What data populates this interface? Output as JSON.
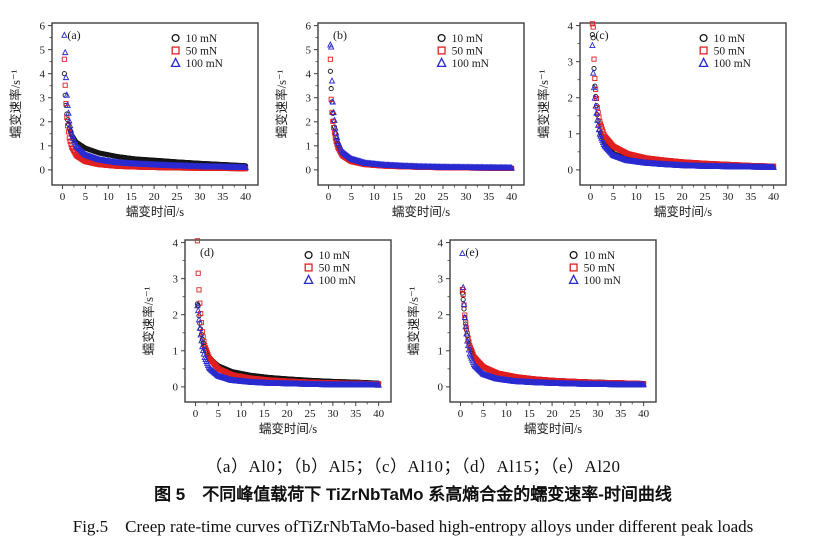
{
  "figure": {
    "caption_sub": "（a）Al0；（b）Al5；（c）Al10；（d）Al15；（e）Al20",
    "caption_zh": "图 5　不同峰值载荷下 TiZrNbTaMo 系高熵合金的蠕变速率-时间曲线",
    "caption_en": "Fig.5　Creep rate-time curves ofTiZrNbTaMo-based high-entropy alloys under different peak loads"
  },
  "colors": {
    "load10": "#141414",
    "load50": "#e01f1f",
    "load100": "#2a2ad0",
    "frame": "#3f3f3f",
    "text": "#1c1c1c"
  },
  "chart_data": [
    {
      "type": "scatter",
      "panel": "(a)",
      "alloy": "Al0",
      "xlabel": "蠕变时间/s",
      "ylabel": "蠕变速率/s⁻¹",
      "xlim": [
        0,
        40
      ],
      "ylim": [
        0,
        6
      ],
      "xticks": [
        0,
        5,
        10,
        15,
        20,
        25,
        30,
        35,
        40
      ],
      "yticks": [
        0,
        1,
        2,
        3,
        4,
        5,
        6
      ],
      "legend_position": "top-right",
      "grid": false,
      "t": [
        0.4,
        0.6,
        0.8,
        1,
        1.5,
        2,
        3,
        5,
        8,
        12,
        16,
        20,
        25,
        30,
        35,
        40
      ],
      "series": [
        {
          "name": "10 mN",
          "marker": "circle",
          "color_key": "load10",
          "y": [
            4.0,
            3.0,
            2.6,
            2.2,
            1.7,
            1.45,
            1.15,
            0.9,
            0.7,
            0.55,
            0.45,
            0.4,
            0.33,
            0.27,
            0.22,
            0.17
          ]
        },
        {
          "name": "50 mN",
          "marker": "square",
          "color_key": "load50",
          "y": [
            4.6,
            3.4,
            2.6,
            2.0,
            1.3,
            0.95,
            0.6,
            0.35,
            0.22,
            0.15,
            0.12,
            0.1,
            0.08,
            0.07,
            0.06,
            0.05
          ]
        },
        {
          "name": "100 mN",
          "marker": "triangle",
          "color_key": "load100",
          "y": [
            5.6,
            4.8,
            3.6,
            2.9,
            2.0,
            1.5,
            1.0,
            0.62,
            0.42,
            0.3,
            0.25,
            0.21,
            0.17,
            0.14,
            0.12,
            0.1
          ]
        }
      ]
    },
    {
      "type": "scatter",
      "panel": "(b)",
      "alloy": "Al5",
      "xlabel": "蠕变时间/s",
      "ylabel": "蠕变速率/s⁻¹",
      "xlim": [
        0,
        40
      ],
      "ylim": [
        0,
        6
      ],
      "xticks": [
        0,
        5,
        10,
        15,
        20,
        25,
        30,
        35,
        40
      ],
      "yticks": [
        0,
        1,
        2,
        3,
        4,
        5,
        6
      ],
      "legend_position": "top-right",
      "grid": false,
      "t": [
        0.4,
        0.6,
        0.8,
        1,
        1.5,
        2,
        3,
        5,
        8,
        12,
        16,
        20,
        25,
        30,
        35,
        40
      ],
      "series": [
        {
          "name": "10 mN",
          "marker": "circle",
          "color_key": "load10",
          "y": [
            4.1,
            3.3,
            2.7,
            2.2,
            1.5,
            1.1,
            0.7,
            0.4,
            0.25,
            0.18,
            0.14,
            0.12,
            0.1,
            0.09,
            0.08,
            0.07
          ]
        },
        {
          "name": "50 mN",
          "marker": "square",
          "color_key": "load50",
          "y": [
            4.6,
            2.75,
            2.3,
            1.9,
            1.3,
            0.95,
            0.6,
            0.35,
            0.22,
            0.16,
            0.13,
            0.11,
            0.09,
            0.08,
            0.07,
            0.06
          ]
        },
        {
          "name": "100 mN",
          "marker": "triangle",
          "color_key": "load100",
          "y": [
            5.2,
            5.1,
            3.35,
            2.6,
            1.7,
            1.2,
            0.75,
            0.45,
            0.28,
            0.2,
            0.16,
            0.13,
            0.11,
            0.1,
            0.09,
            0.08
          ]
        }
      ]
    },
    {
      "type": "scatter",
      "panel": "(c)",
      "alloy": "Al10",
      "xlabel": "蠕变时间/s",
      "ylabel": "蠕变速率/s⁻¹",
      "xlim": [
        0,
        40
      ],
      "ylim": [
        0,
        4
      ],
      "xticks": [
        0,
        5,
        10,
        15,
        20,
        25,
        30,
        35,
        40
      ],
      "yticks": [
        0,
        1,
        2,
        3,
        4
      ],
      "legend_position": "top-right",
      "grid": false,
      "t": [
        0.4,
        0.6,
        0.8,
        1,
        1.5,
        2,
        3,
        5,
        8,
        12,
        16,
        20,
        25,
        30,
        35,
        40
      ],
      "series": [
        {
          "name": "10 mN",
          "marker": "circle",
          "color_key": "load10",
          "y": [
            3.75,
            3.65,
            2.6,
            2.2,
            1.5,
            1.1,
            0.75,
            0.45,
            0.3,
            0.22,
            0.17,
            0.14,
            0.12,
            0.1,
            0.09,
            0.08
          ]
        },
        {
          "name": "50 mN",
          "marker": "square",
          "color_key": "load50",
          "y": [
            4.05,
            3.95,
            2.85,
            2.4,
            1.7,
            1.35,
            0.95,
            0.65,
            0.45,
            0.33,
            0.27,
            0.22,
            0.18,
            0.15,
            0.12,
            0.1
          ]
        },
        {
          "name": "100 mN",
          "marker": "triangle",
          "color_key": "load100",
          "y": [
            3.45,
            2.6,
            2.2,
            1.9,
            1.35,
            1.0,
            0.68,
            0.4,
            0.26,
            0.19,
            0.15,
            0.12,
            0.1,
            0.09,
            0.08,
            0.07
          ]
        }
      ]
    },
    {
      "type": "scatter",
      "panel": "(d)",
      "alloy": "Al15",
      "xlabel": "蠕变时间/s",
      "ylabel": "蠕变速率/s⁻¹",
      "xlim": [
        0,
        40
      ],
      "ylim": [
        0,
        4
      ],
      "xticks": [
        0,
        5,
        10,
        15,
        20,
        25,
        30,
        35,
        40
      ],
      "yticks": [
        0,
        1,
        2,
        3,
        4
      ],
      "legend_position": "top-right",
      "grid": false,
      "t": [
        0.4,
        0.6,
        0.8,
        1,
        1.5,
        2,
        3,
        5,
        8,
        12,
        16,
        20,
        25,
        30,
        35,
        40
      ],
      "series": [
        {
          "name": "10 mN",
          "marker": "circle",
          "color_key": "load10",
          "y": [
            2.3,
            2.25,
            1.9,
            1.7,
            1.3,
            1.05,
            0.8,
            0.58,
            0.42,
            0.32,
            0.26,
            0.22,
            0.18,
            0.15,
            0.13,
            0.1
          ]
        },
        {
          "name": "50 mN",
          "marker": "square",
          "color_key": "load50",
          "y": [
            4.05,
            3.05,
            2.6,
            2.2,
            1.5,
            1.15,
            0.8,
            0.5,
            0.33,
            0.24,
            0.19,
            0.16,
            0.13,
            0.11,
            0.1,
            0.08
          ]
        },
        {
          "name": "100 mN",
          "marker": "triangle",
          "color_key": "load100",
          "y": [
            2.25,
            2.1,
            1.8,
            1.55,
            1.1,
            0.82,
            0.52,
            0.3,
            0.18,
            0.13,
            0.1,
            0.09,
            0.07,
            0.06,
            0.06,
            0.05
          ]
        }
      ]
    },
    {
      "type": "scatter",
      "panel": "(e)",
      "alloy": "Al20",
      "xlabel": "蠕变时间/s",
      "ylabel": "蠕变速率/s⁻¹",
      "xlim": [
        0,
        40
      ],
      "ylim": [
        0,
        4
      ],
      "xticks": [
        0,
        5,
        10,
        15,
        20,
        25,
        30,
        35,
        40
      ],
      "yticks": [
        0,
        1,
        2,
        3,
        4
      ],
      "legend_position": "top-right",
      "grid": false,
      "t": [
        0.4,
        0.6,
        0.8,
        1,
        1.5,
        2,
        3,
        5,
        8,
        12,
        16,
        20,
        25,
        30,
        35,
        40
      ],
      "series": [
        {
          "name": "10 mN",
          "marker": "circle",
          "color_key": "load10",
          "y": [
            2.6,
            2.4,
            2.1,
            1.85,
            1.4,
            1.1,
            0.8,
            0.55,
            0.38,
            0.28,
            0.22,
            0.18,
            0.15,
            0.13,
            0.11,
            0.09
          ]
        },
        {
          "name": "50 mN",
          "marker": "square",
          "color_key": "load50",
          "y": [
            2.7,
            2.55,
            2.2,
            1.9,
            1.45,
            1.15,
            0.82,
            0.55,
            0.38,
            0.28,
            0.22,
            0.18,
            0.15,
            0.12,
            0.11,
            0.09
          ]
        },
        {
          "name": "100 mN",
          "marker": "triangle",
          "color_key": "load100",
          "y": [
            3.7,
            2.65,
            2.2,
            1.8,
            1.25,
            0.92,
            0.6,
            0.35,
            0.22,
            0.15,
            0.12,
            0.1,
            0.08,
            0.07,
            0.06,
            0.06
          ]
        }
      ]
    }
  ]
}
